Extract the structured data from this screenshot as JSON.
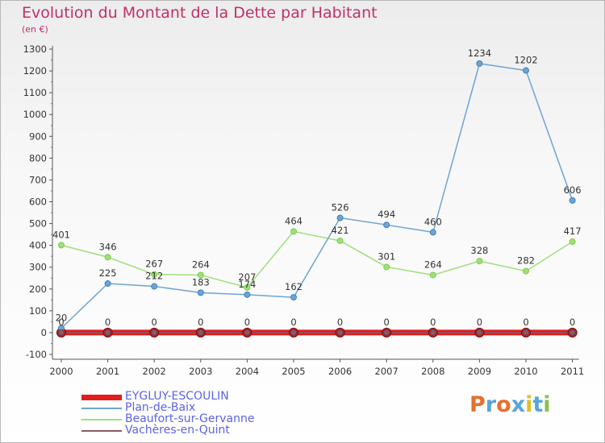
{
  "title": "Evolution du Montant de la Dette par Habitant",
  "unit": "(en €)",
  "logo": {
    "text": "Proxiti",
    "colors": [
      "#e6702e",
      "#5aa5d8",
      "#e6702e",
      "#5aa5d8",
      "#e0c020",
      "#5aa5d8",
      "#8ac04a"
    ]
  },
  "chart_data": {
    "type": "line",
    "title": "Evolution du Montant de la Dette par Habitant",
    "ylabel": "(en €)",
    "xlabel": "",
    "categories": [
      "2000",
      "2001",
      "2002",
      "2003",
      "2004",
      "2005",
      "2006",
      "2007",
      "2008",
      "2009",
      "2010",
      "2011"
    ],
    "ylim": [
      -100,
      1300
    ],
    "yticks": [
      -100,
      0,
      100,
      200,
      300,
      400,
      500,
      600,
      700,
      800,
      900,
      1000,
      1100,
      1200,
      1300
    ],
    "grid": false,
    "legend_position": "bottom-left",
    "series": [
      {
        "name": "EYGLUY-ESCOULIN",
        "color": "#e21b1b",
        "marker": "#c01818",
        "values": [
          0,
          0,
          0,
          0,
          0,
          0,
          0,
          0,
          0,
          0,
          0,
          0
        ]
      },
      {
        "name": "Plan-de-Baix",
        "color": "#6ea4d2",
        "marker": "#3f80c4",
        "values": [
          20,
          225,
          212,
          183,
          174,
          162,
          526,
          494,
          460,
          1234,
          1202,
          606
        ]
      },
      {
        "name": "Beaufort-sur-Gervanne",
        "color": "#9ee07a",
        "marker": "#7ccc4a",
        "values": [
          401,
          346,
          267,
          264,
          207,
          464,
          421,
          301,
          264,
          328,
          282,
          417
        ]
      },
      {
        "name": "Vachères-en-Quint",
        "color": "#8a5a66",
        "marker": "#6a3a4a",
        "values": [
          0,
          0,
          0,
          0,
          0,
          0,
          0,
          0,
          0,
          0,
          0,
          0
        ]
      }
    ],
    "data_labels": [
      {
        "series": 1,
        "labels": [
          "20",
          "225",
          "212",
          "183",
          "174",
          "162",
          "526",
          "494",
          "460",
          "1234",
          "1202",
          "606"
        ]
      },
      {
        "series": 2,
        "labels": [
          "401",
          "346",
          "267",
          "264",
          "207",
          "464",
          "421",
          "301",
          "264",
          "328",
          "282",
          "417"
        ]
      },
      {
        "series": 0,
        "labels": [
          "0",
          "0",
          "0",
          "0",
          "0",
          "0",
          "0",
          "0",
          "0",
          "0",
          "0",
          "0"
        ]
      }
    ]
  }
}
